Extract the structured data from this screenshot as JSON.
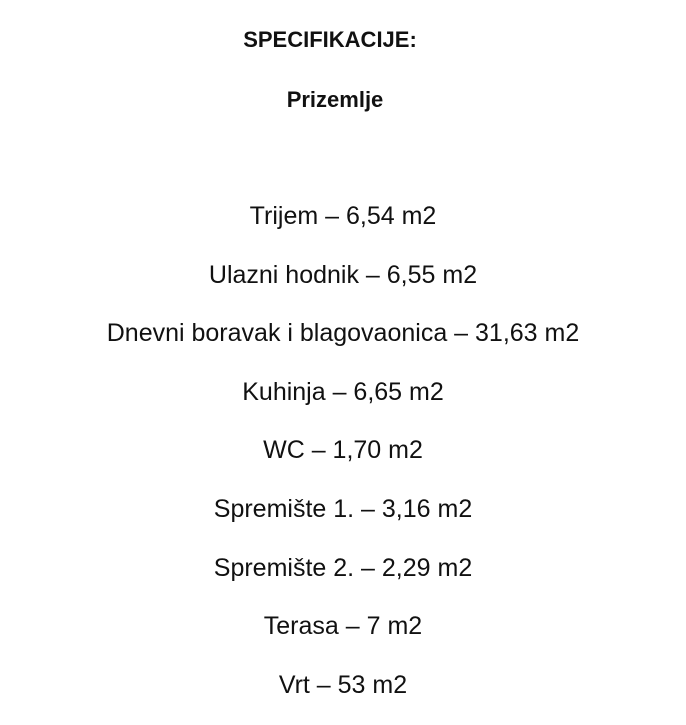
{
  "document": {
    "title": "SPECIFIKACIJE:",
    "subtitle": "Prizemlje",
    "items": [
      "Trijem – 6,54 m2",
      "Ulazni hodnik – 6,55 m2",
      "Dnevni boravak i blagovaonica – 31,63 m2",
      "Kuhinja – 6,65 m2",
      "WC – 1,70 m2",
      "Spremište 1. – 3,16 m2",
      "Spremište 2. – 2,29 m2",
      "Terasa – 7 m2",
      "Vrt – 53 m2"
    ]
  }
}
